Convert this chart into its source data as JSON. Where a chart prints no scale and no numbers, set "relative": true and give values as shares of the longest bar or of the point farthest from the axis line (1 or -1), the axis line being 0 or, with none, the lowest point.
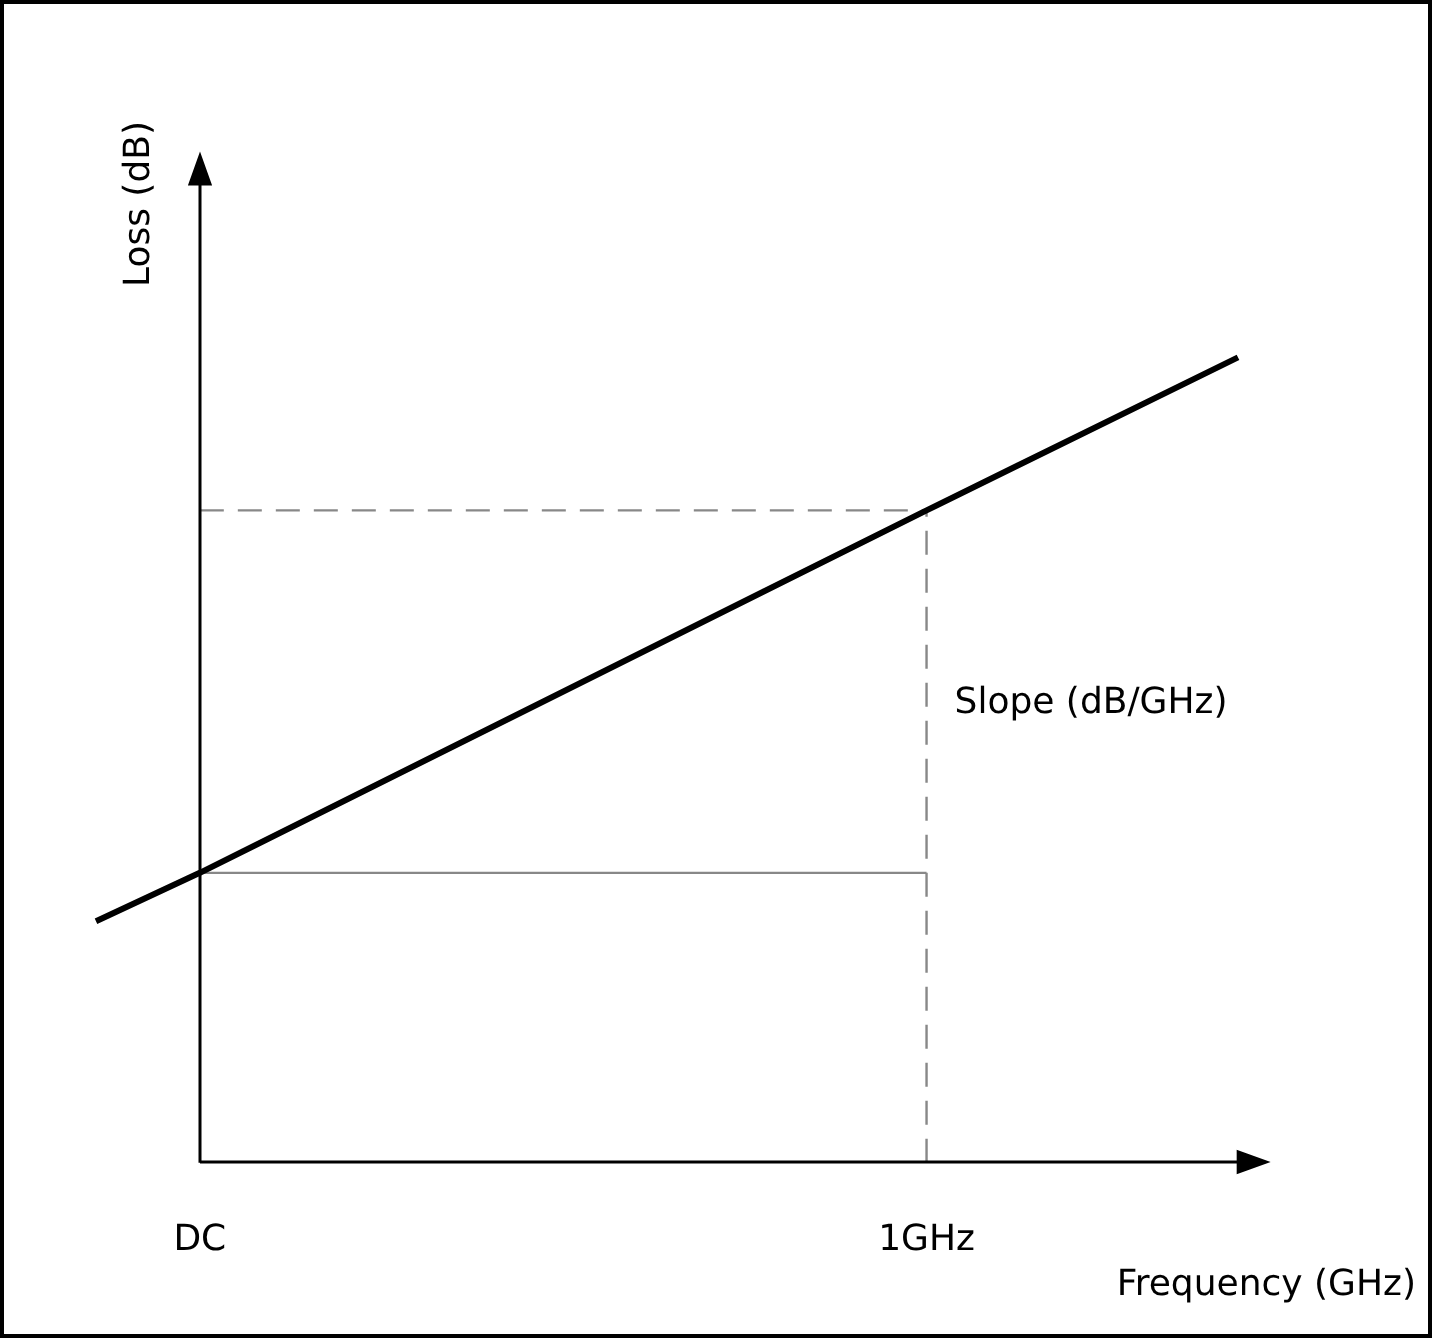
{
  "chart_data": {
    "type": "line",
    "relative": true,
    "xlabel": "Frequency (GHz)",
    "ylabel": "Loss (dB)",
    "categories": [
      null,
      "DC",
      null,
      null,
      null,
      null,
      null,
      null,
      "1GHz",
      null,
      null,
      null
    ],
    "series": [
      {
        "color": "#000000",
        "values": [
          0.3,
          0.36,
          null,
          null,
          null,
          null,
          null,
          null,
          0.81,
          null,
          null,
          1
        ]
      }
    ],
    "ref_lines": [
      {
        "axis": "y",
        "value": 0.81,
        "color": "#888888",
        "line_style": "dashed"
      },
      {
        "axis": "y",
        "value": 0.36,
        "color": "#888888",
        "line_style": "solid"
      },
      {
        "axis": "x",
        "value": "1GHz",
        "color": "#888888",
        "line_style": "dashed"
      }
    ],
    "annotations": [
      "Slope (dB/GHz)"
    ],
    "grid": false,
    "legend": false,
    "marker": "none",
    "line_style": "solid"
  }
}
